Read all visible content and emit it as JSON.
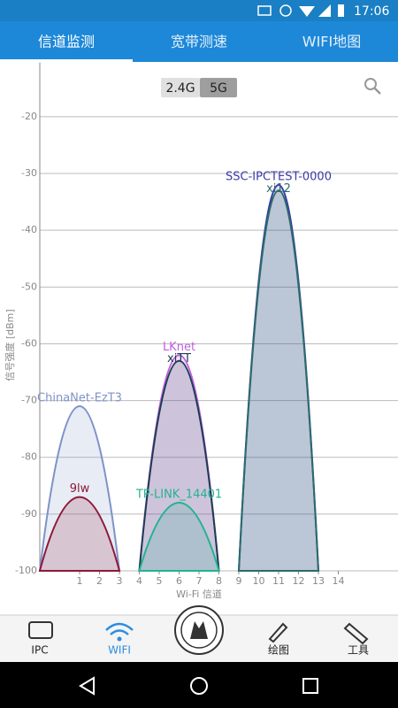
{
  "status_bar": {
    "time": "17:06"
  },
  "tabs": [
    "信道监测",
    "宽带测速",
    "WIFI地图"
  ],
  "band_toggle": [
    "2.4G",
    "5G"
  ],
  "chart_data": {
    "type": "bell",
    "x_label": "Wi-Fi 信道",
    "y_label": "信号强度 [dBm]",
    "xlim": [
      -1,
      17
    ],
    "ylim": [
      -100,
      -12
    ],
    "xticks": [
      1,
      2,
      3,
      4,
      5,
      6,
      7,
      8,
      9,
      10,
      11,
      12,
      13,
      14
    ],
    "yticks": [
      -100,
      -90,
      -80,
      -70,
      -60,
      -50,
      -40,
      -30,
      -20
    ],
    "grid": true,
    "series": [
      {
        "name": "ChinaNet-EzT3",
        "color": "#7f93c8",
        "channel": 1,
        "values": -71
      },
      {
        "name": "9lw",
        "color": "#8e1838",
        "channel": 1,
        "values": -87
      },
      {
        "name": "LKnet",
        "color": "#c060e0",
        "channel": 6,
        "values": -62
      },
      {
        "name": "xiTT",
        "color": "#1d3d55",
        "channel": 6,
        "values": -63
      },
      {
        "name": "TP-LINK_14401",
        "color": "#22b38e",
        "channel": 6,
        "values": -88
      },
      {
        "name": "SSC-IPCTEST-0000",
        "color": "#3a3aa8",
        "channel": 11,
        "values": -32
      },
      {
        "name": "xi12",
        "color": "#2b6b6b",
        "channel": 11,
        "values": -33
      }
    ]
  },
  "bottom_nav": [
    "IPC",
    "WIFI",
    "绘图",
    "工具"
  ]
}
